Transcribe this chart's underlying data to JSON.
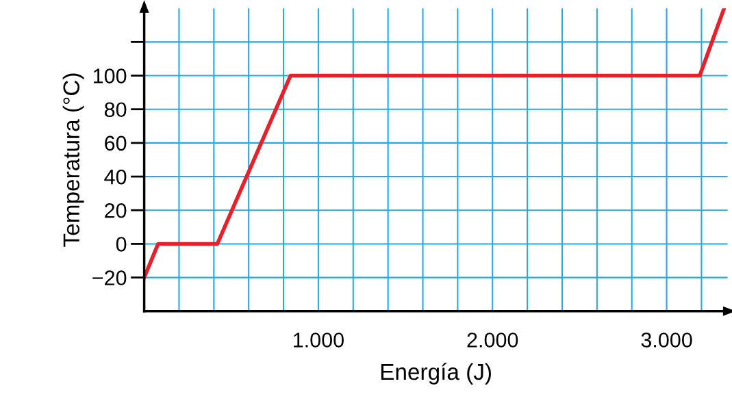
{
  "chart_data": {
    "type": "line",
    "xlabel": "Energía (J)",
    "ylabel": "Temperatura (°C)",
    "x": [
      0,
      80,
      420,
      840,
      3190,
      3330
    ],
    "series": [
      {
        "color": "#e8202a",
        "values": [
          -20,
          0,
          0,
          100,
          100,
          140
        ]
      }
    ],
    "xlim": [
      0,
      3350
    ],
    "ylim": [
      -40,
      140
    ],
    "xticks": [
      {
        "value": 200,
        "label": null
      },
      {
        "value": 400,
        "label": null
      },
      {
        "value": 600,
        "label": null
      },
      {
        "value": 800,
        "label": null
      },
      {
        "value": 1000,
        "label": "1.000"
      },
      {
        "value": 1200,
        "label": null
      },
      {
        "value": 1400,
        "label": null
      },
      {
        "value": 1600,
        "label": null
      },
      {
        "value": 1800,
        "label": null
      },
      {
        "value": 2000,
        "label": "2.000"
      },
      {
        "value": 2200,
        "label": null
      },
      {
        "value": 2400,
        "label": null
      },
      {
        "value": 2600,
        "label": null
      },
      {
        "value": 2800,
        "label": null
      },
      {
        "value": 3000,
        "label": "3.000"
      },
      {
        "value": 3200,
        "label": null
      }
    ],
    "yticks": [
      {
        "value": -20,
        "label": "−20"
      },
      0,
      20,
      40,
      60,
      80,
      100,
      {
        "value": 120,
        "label": null
      }
    ],
    "grid": true,
    "marker": "none",
    "line_style": "solid"
  }
}
